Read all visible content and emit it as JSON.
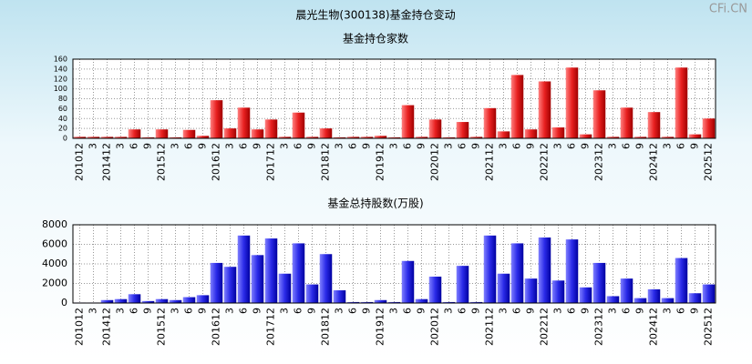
{
  "title": "晨光生物(300138)基金持仓变动",
  "watermark": "CFi.CN",
  "chart_data": [
    {
      "type": "bar",
      "title": "基金持仓家数",
      "color": "#e02020",
      "categories": [
        "201012",
        "3",
        "201412",
        "3",
        "6",
        "9",
        "201512",
        "3",
        "6",
        "9",
        "201612",
        "3",
        "6",
        "9",
        "201712",
        "3",
        "6",
        "9",
        "201812",
        "3",
        "6",
        "9",
        "201912",
        "3",
        "6",
        "9",
        "202012",
        "3",
        "6",
        "9",
        "202112",
        "3",
        "6",
        "9",
        "202212",
        "3",
        "6",
        "9",
        "202312",
        "3",
        "6",
        "9",
        "202412",
        "3",
        "6",
        "9",
        "202512"
      ],
      "values": [
        3,
        3,
        3,
        3,
        18,
        2,
        18,
        2,
        17,
        5,
        77,
        20,
        62,
        18,
        38,
        3,
        52,
        3,
        20,
        2,
        3,
        3,
        5,
        2,
        67,
        3,
        38,
        2,
        33,
        3,
        61,
        14,
        128,
        18,
        115,
        22,
        143,
        8,
        97,
        3,
        62,
        3,
        53,
        3,
        143,
        8,
        40
      ],
      "ylim": [
        0,
        160
      ],
      "yticks": [
        0,
        20,
        40,
        60,
        80,
        100,
        120,
        140,
        160
      ],
      "grid": true
    },
    {
      "type": "bar",
      "title": "基金总持股数(万股)",
      "color": "#2020e0",
      "categories": [
        "201012",
        "3",
        "201412",
        "3",
        "6",
        "9",
        "201512",
        "3",
        "6",
        "9",
        "201612",
        "3",
        "6",
        "9",
        "201712",
        "3",
        "6",
        "9",
        "201812",
        "3",
        "6",
        "9",
        "201912",
        "3",
        "6",
        "9",
        "202012",
        "3",
        "6",
        "9",
        "202112",
        "3",
        "6",
        "9",
        "202212",
        "3",
        "6",
        "9",
        "202312",
        "3",
        "6",
        "9",
        "202412",
        "3",
        "6",
        "9",
        "202512"
      ],
      "values": [
        50,
        50,
        300,
        400,
        900,
        200,
        400,
        300,
        600,
        800,
        4100,
        3700,
        6900,
        4900,
        6600,
        3000,
        6100,
        1900,
        5000,
        1300,
        100,
        100,
        300,
        100,
        4300,
        400,
        2700,
        100,
        3800,
        100,
        6900,
        3000,
        6100,
        2500,
        6700,
        2300,
        6500,
        1600,
        4100,
        700,
        2500,
        500,
        1400,
        500,
        4600,
        1000,
        1900
      ],
      "ylim": [
        0,
        8000
      ],
      "yticks": [
        0,
        2000,
        4000,
        6000,
        8000
      ],
      "grid": true
    }
  ]
}
